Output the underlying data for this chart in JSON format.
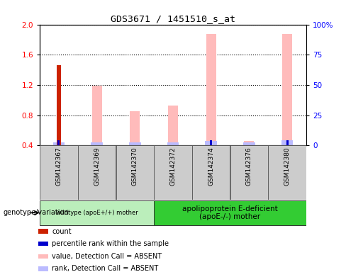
{
  "title": "GDS3671 / 1451510_s_at",
  "samples": [
    "GSM142367",
    "GSM142369",
    "GSM142370",
    "GSM142372",
    "GSM142374",
    "GSM142376",
    "GSM142380"
  ],
  "count_values": [
    1.46,
    0,
    0,
    0,
    0,
    0,
    0
  ],
  "percentile_rank": [
    0.47,
    0,
    0,
    0,
    0.47,
    0,
    0.47
  ],
  "value_absent": [
    0,
    1.19,
    0.85,
    0.93,
    1.87,
    0.46,
    1.87
  ],
  "rank_absent": [
    0.44,
    0.44,
    0.44,
    0.44,
    0.46,
    0.44,
    0.47
  ],
  "ylim_left": [
    0.4,
    2.0
  ],
  "ylim_right": [
    0,
    100
  ],
  "yticks_left": [
    0.4,
    0.8,
    1.2,
    1.6,
    2.0
  ],
  "yticks_right": [
    0,
    25,
    50,
    75,
    100
  ],
  "ytick_labels_right": [
    "0",
    "25",
    "50",
    "75",
    "100%"
  ],
  "groups": [
    {
      "label": "wildtype (apoE+/+) mother",
      "indices": [
        0,
        1,
        2
      ],
      "color": "#bbeebb"
    },
    {
      "label": "apolipoprotein E-deficient\n(apoE-/-) mother",
      "indices": [
        3,
        4,
        5,
        6
      ],
      "color": "#33cc33"
    }
  ],
  "bar_width": 0.22,
  "color_count": "#cc2200",
  "color_rank": "#0000cc",
  "color_value_absent": "#ffbbbb",
  "color_rank_absent": "#bbbbff",
  "legend_items": [
    {
      "label": "count",
      "color": "#cc2200"
    },
    {
      "label": "percentile rank within the sample",
      "color": "#0000cc"
    },
    {
      "label": "value, Detection Call = ABSENT",
      "color": "#ffbbbb"
    },
    {
      "label": "rank, Detection Call = ABSENT",
      "color": "#bbbbff"
    }
  ],
  "genotype_label": "genotype/variation",
  "x_tick_bg": "#cccccc"
}
